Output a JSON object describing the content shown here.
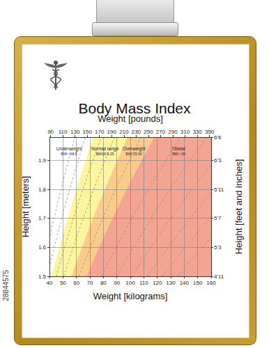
{
  "chart_data": {
    "type": "region",
    "title": "Body Mass Index",
    "x_label": "Weight [kilograms]",
    "x2_label": "Weight [pounds]",
    "y_label": "Height [meters]",
    "y2_label": "Height [feet and inches]",
    "xlim": [
      40,
      160
    ],
    "xticks": [
      40,
      50,
      60,
      70,
      80,
      90,
      100,
      110,
      120,
      130,
      140,
      150,
      160
    ],
    "x2lim": [
      88.2,
      352.7
    ],
    "x2ticks": [
      90,
      110,
      130,
      150,
      170,
      190,
      210,
      230,
      250,
      270,
      290,
      310,
      330,
      350
    ],
    "ylim": [
      1.5,
      1.98
    ],
    "yticks": [
      1.5,
      1.6,
      1.7,
      1.8,
      1.9
    ],
    "y2lim": [
      1.5,
      1.98
    ],
    "y2ticks": [
      {
        "value": 1.5,
        "label": "4'11"
      },
      {
        "value": 1.6,
        "label": "5'3"
      },
      {
        "value": 1.7,
        "label": "5'7"
      },
      {
        "value": 1.8,
        "label": "5'11"
      },
      {
        "value": 1.9,
        "label": "6'3"
      },
      {
        "value": 1.98,
        "label": "6'6"
      }
    ],
    "grid": true,
    "bands": [
      {
        "name": "Underweight",
        "label": "BMI <18.5",
        "range": [
          null,
          18.5
        ],
        "color": "#ffffff"
      },
      {
        "name": "Normal range",
        "label": "BMI18.5-25",
        "range": [
          18.5,
          25
        ],
        "color": "#fbf5a0"
      },
      {
        "name": "Overweight",
        "label": "BMI 25-30",
        "range": [
          25,
          30
        ],
        "color": "#f9cc8c"
      },
      {
        "name": "Obese",
        "label": "BMI >30",
        "range": [
          30,
          null
        ],
        "color": "#f4a493"
      }
    ],
    "contours": [
      15,
      17,
      20,
      22.5,
      27.5,
      35,
      40,
      45,
      50,
      55,
      60
    ],
    "line_style": "dashed"
  },
  "stock_id": "28844575"
}
